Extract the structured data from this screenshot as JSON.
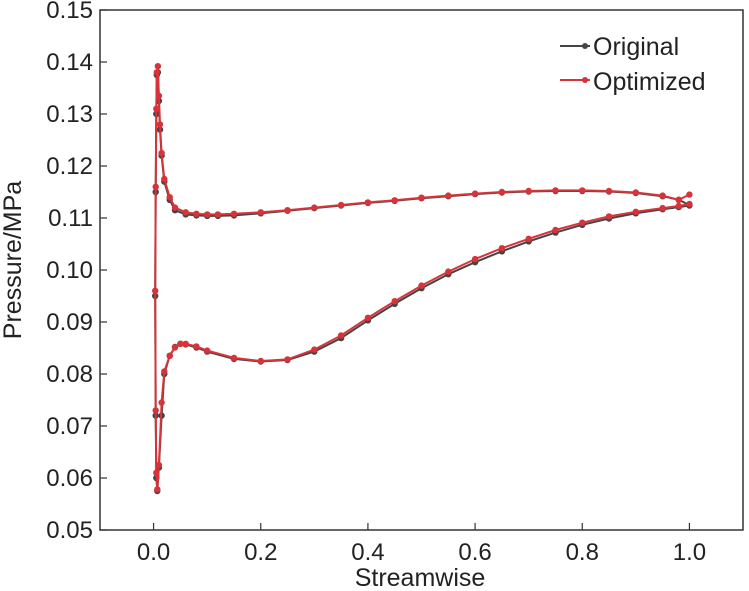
{
  "chart_data": {
    "type": "line",
    "xlabel": "Streamwise",
    "ylabel": "Pressure/MPa",
    "xlim": [
      -0.1,
      1.1
    ],
    "ylim": [
      0.05,
      0.15
    ],
    "xticks": [
      0.0,
      0.2,
      0.4,
      0.6,
      0.8,
      1.0
    ],
    "xtick_labels": [
      "0.0",
      "0.2",
      "0.4",
      "0.6",
      "0.8",
      "1.0"
    ],
    "yticks": [
      0.05,
      0.06,
      0.07,
      0.08,
      0.09,
      0.1,
      0.11,
      0.12,
      0.13,
      0.14,
      0.15
    ],
    "ytick_labels": [
      "0.05",
      "0.06",
      "0.07",
      "0.08",
      "0.09",
      "0.10",
      "0.11",
      "0.12",
      "0.13",
      "0.14",
      "0.15"
    ],
    "grid": false,
    "legend_position": "top-right",
    "series": [
      {
        "name": "Original",
        "color": "#444444",
        "marker": "circle",
        "x": [
          1.0,
          0.98,
          0.95,
          0.9,
          0.85,
          0.8,
          0.75,
          0.7,
          0.65,
          0.6,
          0.55,
          0.5,
          0.45,
          0.4,
          0.35,
          0.3,
          0.25,
          0.2,
          0.15,
          0.12,
          0.1,
          0.08,
          0.06,
          0.04,
          0.03,
          0.02,
          0.015,
          0.012,
          0.01,
          0.008,
          0.006,
          0.005,
          0.004,
          0.003,
          0.004,
          0.005,
          0.007,
          0.01,
          0.015,
          0.02,
          0.03,
          0.04,
          0.05,
          0.06,
          0.08,
          0.1,
          0.15,
          0.2,
          0.25,
          0.3,
          0.35,
          0.4,
          0.45,
          0.5,
          0.55,
          0.6,
          0.65,
          0.7,
          0.75,
          0.8,
          0.85,
          0.9,
          0.95,
          0.98,
          1.0
        ],
        "y": [
          0.1125,
          0.1135,
          0.1142,
          0.1148,
          0.1151,
          0.1152,
          0.1152,
          0.1151,
          0.1149,
          0.1146,
          0.1142,
          0.1138,
          0.1133,
          0.1129,
          0.1124,
          0.1119,
          0.1114,
          0.1109,
          0.1105,
          0.1104,
          0.1104,
          0.1105,
          0.1107,
          0.1115,
          0.1135,
          0.117,
          0.122,
          0.127,
          0.1325,
          0.138,
          0.1375,
          0.13,
          0.115,
          0.095,
          0.072,
          0.06,
          0.0575,
          0.062,
          0.072,
          0.08,
          0.0835,
          0.0852,
          0.0858,
          0.0857,
          0.0851,
          0.0843,
          0.0829,
          0.0824,
          0.0827,
          0.0843,
          0.0869,
          0.0903,
          0.0935,
          0.0965,
          0.0992,
          0.1015,
          0.1036,
          0.1055,
          0.1072,
          0.1087,
          0.1099,
          0.1109,
          0.1117,
          0.1121,
          0.1124
        ]
      },
      {
        "name": "Optimized",
        "color": "#d9333a",
        "marker": "circle",
        "x": [
          1.0,
          0.98,
          0.95,
          0.9,
          0.85,
          0.8,
          0.75,
          0.7,
          0.65,
          0.6,
          0.55,
          0.5,
          0.45,
          0.4,
          0.35,
          0.3,
          0.25,
          0.2,
          0.15,
          0.12,
          0.1,
          0.08,
          0.06,
          0.04,
          0.03,
          0.02,
          0.015,
          0.012,
          0.01,
          0.008,
          0.006,
          0.005,
          0.004,
          0.003,
          0.004,
          0.005,
          0.007,
          0.01,
          0.015,
          0.02,
          0.03,
          0.04,
          0.05,
          0.06,
          0.08,
          0.1,
          0.15,
          0.2,
          0.25,
          0.3,
          0.35,
          0.4,
          0.45,
          0.5,
          0.55,
          0.6,
          0.65,
          0.7,
          0.75,
          0.8,
          0.85,
          0.9,
          0.95,
          0.98,
          1.0
        ],
        "y": [
          0.1145,
          0.1135,
          0.1143,
          0.1149,
          0.1152,
          0.1153,
          0.1153,
          0.1152,
          0.115,
          0.1147,
          0.1143,
          0.1139,
          0.1134,
          0.113,
          0.1125,
          0.112,
          0.1115,
          0.1111,
          0.1108,
          0.1107,
          0.1107,
          0.1108,
          0.1111,
          0.112,
          0.114,
          0.1175,
          0.1225,
          0.128,
          0.1335,
          0.1392,
          0.138,
          0.131,
          0.116,
          0.096,
          0.073,
          0.061,
          0.0578,
          0.0625,
          0.0745,
          0.0805,
          0.0835,
          0.0851,
          0.0858,
          0.0858,
          0.0853,
          0.0845,
          0.0831,
          0.0825,
          0.0828,
          0.0847,
          0.0874,
          0.0908,
          0.094,
          0.097,
          0.0997,
          0.1021,
          0.1042,
          0.106,
          0.1077,
          0.1091,
          0.1103,
          0.1112,
          0.1119,
          0.1123,
          0.1127
        ]
      }
    ]
  }
}
